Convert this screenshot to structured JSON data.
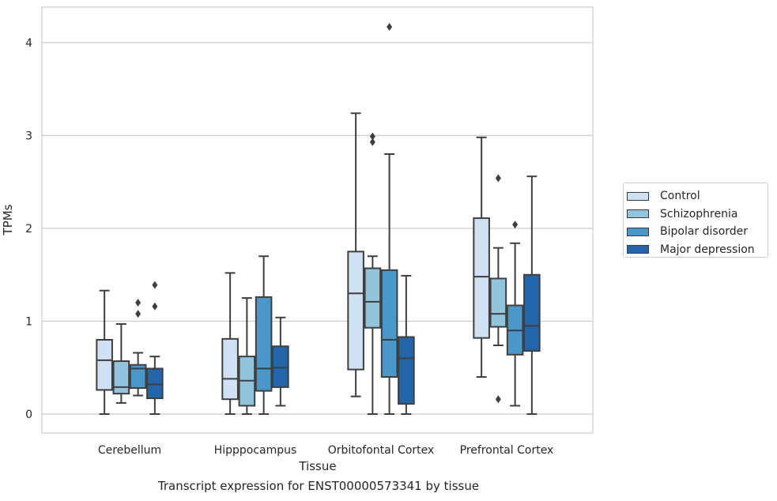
{
  "chart_data": {
    "type": "box",
    "xlabel": "Tissue",
    "ylabel": "TPMs",
    "ylim": [
      -0.2,
      4.4
    ],
    "yticks": [
      0,
      1,
      2,
      3,
      4
    ],
    "grid": "horizontal",
    "legend_position": "right",
    "categories": [
      "Cerebellum",
      "Hipppocampus",
      "Orbitofontal Cortex",
      "Prefrontal Cortex"
    ],
    "series": [
      {
        "name": "Control",
        "color": "#cfe1f2",
        "boxes": [
          {
            "whislo": 0.0,
            "q1": 0.26,
            "med": 0.58,
            "q3": 0.8,
            "whishi": 1.33,
            "fliers": []
          },
          {
            "whislo": 0.0,
            "q1": 0.16,
            "med": 0.38,
            "q3": 0.81,
            "whishi": 1.52,
            "fliers": []
          },
          {
            "whislo": 0.19,
            "q1": 0.48,
            "med": 1.3,
            "q3": 1.75,
            "whishi": 3.24,
            "fliers": []
          },
          {
            "whislo": 0.4,
            "q1": 0.82,
            "med": 1.48,
            "q3": 2.11,
            "whishi": 2.98,
            "fliers": []
          }
        ]
      },
      {
        "name": "Schizophrenia",
        "color": "#93c4de",
        "boxes": [
          {
            "whislo": 0.12,
            "q1": 0.22,
            "med": 0.29,
            "q3": 0.57,
            "whishi": 0.97,
            "fliers": []
          },
          {
            "whislo": 0.0,
            "q1": 0.09,
            "med": 0.36,
            "q3": 0.62,
            "whishi": 1.25,
            "fliers": []
          },
          {
            "whislo": 0.0,
            "q1": 0.93,
            "med": 1.21,
            "q3": 1.57,
            "whishi": 1.7,
            "fliers": [
              2.93,
              2.99
            ]
          },
          {
            "whislo": 0.74,
            "q1": 0.94,
            "med": 1.08,
            "q3": 1.46,
            "whishi": 1.79,
            "fliers": [
              0.16,
              2.54
            ]
          }
        ]
      },
      {
        "name": "Bipolar disorder",
        "color": "#4a98c9",
        "boxes": [
          {
            "whislo": 0.2,
            "q1": 0.28,
            "med": 0.49,
            "q3": 0.53,
            "whishi": 0.66,
            "fliers": [
              1.08,
              1.2
            ]
          },
          {
            "whislo": 0.0,
            "q1": 0.25,
            "med": 0.49,
            "q3": 1.26,
            "whishi": 1.7,
            "fliers": []
          },
          {
            "whislo": 0.0,
            "q1": 0.4,
            "med": 0.8,
            "q3": 1.55,
            "whishi": 2.8,
            "fliers": [
              4.17
            ]
          },
          {
            "whislo": 0.09,
            "q1": 0.64,
            "med": 0.9,
            "q3": 1.17,
            "whishi": 1.84,
            "fliers": [
              2.04
            ]
          }
        ]
      },
      {
        "name": "Major depression",
        "color": "#2365a9",
        "boxes": [
          {
            "whislo": 0.0,
            "q1": 0.17,
            "med": 0.32,
            "q3": 0.49,
            "whishi": 0.62,
            "fliers": [
              1.16,
              1.39
            ]
          },
          {
            "whislo": 0.09,
            "q1": 0.29,
            "med": 0.5,
            "q3": 0.73,
            "whishi": 1.04,
            "fliers": []
          },
          {
            "whislo": 0.0,
            "q1": 0.11,
            "med": 0.6,
            "q3": 0.83,
            "whishi": 1.49,
            "fliers": []
          },
          {
            "whislo": 0.0,
            "q1": 0.68,
            "med": 0.95,
            "q3": 1.5,
            "whishi": 2.56,
            "fliers": []
          }
        ]
      }
    ]
  },
  "caption": "Transcript expression for ENST00000573341 by tissue"
}
